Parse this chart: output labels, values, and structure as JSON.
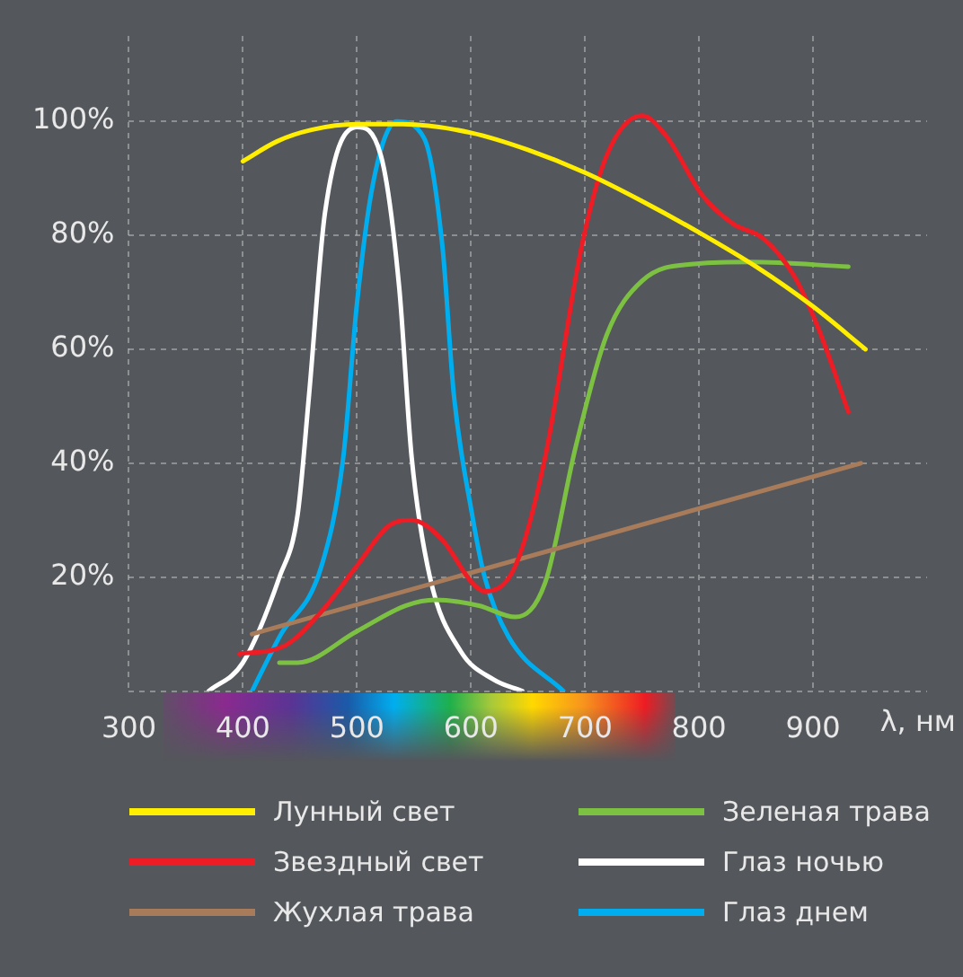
{
  "chart_data": {
    "type": "line",
    "xlabel": "λ, нм",
    "xlim": [
      300,
      1000
    ],
    "xticks": [
      300,
      400,
      500,
      600,
      700,
      800,
      900
    ],
    "ylim": [
      0,
      115
    ],
    "yticks": [
      {
        "value": 0,
        "label": null
      },
      {
        "value": 20,
        "label": "20%"
      },
      {
        "value": 40,
        "label": "40%"
      },
      {
        "value": 60,
        "label": "60%"
      },
      {
        "value": 80,
        "label": "80%"
      },
      {
        "value": 100,
        "label": "100%"
      }
    ],
    "grid": true,
    "legend": "bottom",
    "series": [
      {
        "name": "Лунный свет",
        "color": "#ffee00",
        "x": [
          400,
          430,
          460,
          500,
          540,
          600,
          650,
          700,
          750,
          800,
          850,
          900,
          946
        ],
        "values": [
          93,
          96.5,
          98.5,
          99.5,
          99.5,
          98,
          95,
          91,
          86,
          80.5,
          74.5,
          67.5,
          60
        ]
      },
      {
        "name": "Звездный свет",
        "color": "#ee1c24",
        "x": [
          397,
          437,
          469,
          500,
          528,
          548,
          575,
          601,
          612,
          639,
          665,
          697,
          719,
          750,
          771,
          803,
          830,
          856,
          883,
          904,
          931
        ],
        "values": [
          6.5,
          8,
          14,
          22,
          29,
          30,
          26.5,
          19,
          17.5,
          22,
          41,
          78,
          94,
          101,
          97.5,
          87,
          82,
          79.5,
          73,
          64,
          49
        ]
      },
      {
        "name": "Жухлая трава",
        "color": "#a87c5a",
        "x": [
          408,
          942
        ],
        "values": [
          10,
          40
        ]
      },
      {
        "name": "Зеленая трава",
        "color": "#7dc142",
        "x": [
          432,
          448,
          500,
          543,
          569,
          607,
          639,
          665,
          692,
          719,
          750,
          798,
          846,
          931
        ],
        "values": [
          5,
          5,
          10.5,
          15,
          16,
          15,
          13,
          19,
          43,
          62.5,
          72,
          75,
          75.3,
          74.5
        ]
      },
      {
        "name": "Глаз ночью",
        "color": "#ffffff",
        "x": [
          370,
          400,
          432,
          448,
          458,
          472,
          500,
          521,
          537,
          548,
          564,
          591,
          620,
          645
        ],
        "values": [
          0,
          5,
          20,
          31,
          52,
          84,
          99,
          94,
          71,
          41,
          20,
          7,
          2,
          0
        ]
      },
      {
        "name": "Глаз днем",
        "color": "#00aeef",
        "x": [
          408,
          432,
          469,
          488,
          500,
          514,
          535,
          559,
          575,
          585,
          601,
          612,
          633,
          681
        ],
        "values": [
          0,
          9.5,
          22,
          41,
          68,
          89,
          100,
          97,
          78,
          52,
          31,
          20,
          9.5,
          0
        ]
      }
    ]
  }
}
